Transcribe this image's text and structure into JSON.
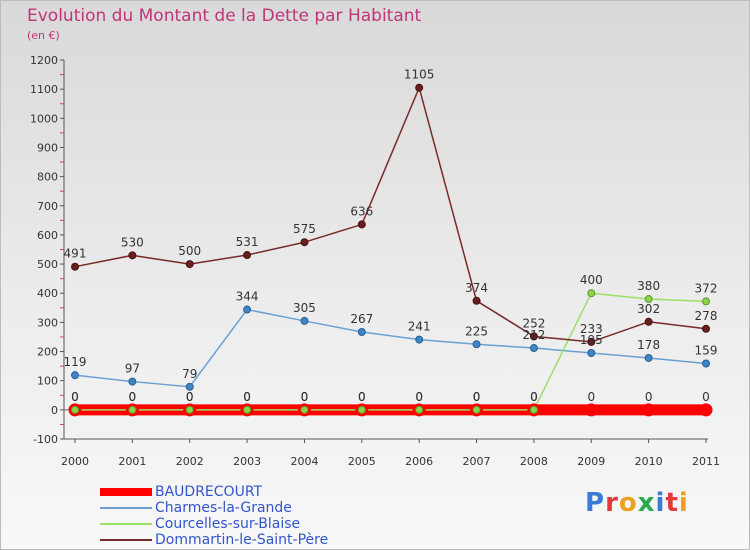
{
  "header": {
    "title": "Evolution du Montant de la Dette par Habitant",
    "unit": "(en €)"
  },
  "logo": {
    "text": "Proxiti",
    "colors": [
      "#3a7bd5",
      "#e23a3a",
      "#f0a020",
      "#2aa84a",
      "#3a7bd5",
      "#e23a3a",
      "#f0a020"
    ]
  },
  "chart_data": {
    "type": "line",
    "title": "Evolution du Montant de la Dette par Habitant",
    "subtitle": "(en €)",
    "xlabel": "",
    "ylabel": "",
    "ylim": [
      -100,
      1200
    ],
    "y_ticks": [
      -100,
      0,
      100,
      200,
      300,
      400,
      500,
      600,
      700,
      800,
      900,
      1000,
      1100,
      1200
    ],
    "grid": false,
    "legend_position": "bottom-left",
    "categories": [
      "2000",
      "2001",
      "2002",
      "2003",
      "2004",
      "2005",
      "2006",
      "2007",
      "2008",
      "2009",
      "2010",
      "2011"
    ],
    "series": [
      {
        "name": "BAUDRECOURT",
        "color": "#ff0000",
        "values": [
          0,
          0,
          0,
          0,
          0,
          0,
          0,
          0,
          0,
          0,
          0,
          0
        ],
        "labels": [
          "0",
          "0",
          "0",
          "0",
          "0",
          "0",
          "0",
          "0",
          "0",
          "0",
          "0",
          "0"
        ]
      },
      {
        "name": "Charmes-la-Grande",
        "color": "#6aa0d4",
        "values": [
          119,
          97,
          79,
          344,
          305,
          267,
          241,
          225,
          212,
          195,
          178,
          159
        ],
        "labels": [
          "119",
          "97",
          "79",
          "344",
          "305",
          "267",
          "241",
          "225",
          "212",
          "195",
          "178",
          "159"
        ]
      },
      {
        "name": "Courcelles-sur-Blaise",
        "color": "#99e066",
        "values": [
          0,
          0,
          0,
          0,
          0,
          0,
          0,
          0,
          0,
          400,
          380,
          372
        ],
        "labels": [
          "0",
          "0",
          "0",
          "0",
          "0",
          "0",
          "0",
          "0",
          "0",
          "400",
          "380",
          "372"
        ]
      },
      {
        "name": "Dommartin-le-Saint-Père",
        "color": "#7a2a2a",
        "values": [
          491,
          530,
          500,
          531,
          575,
          636,
          1105,
          374,
          252,
          233,
          302,
          278
        ],
        "labels": [
          "491",
          "530",
          "500",
          "531",
          "575",
          "636",
          "1105",
          "374",
          "252",
          "233",
          "302",
          "278"
        ]
      }
    ]
  }
}
